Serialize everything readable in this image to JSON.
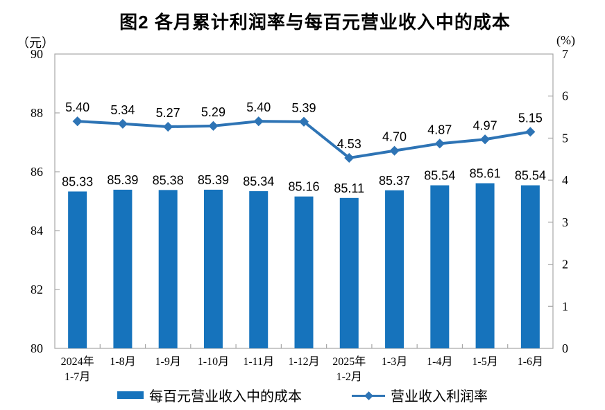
{
  "title": "图2 各月累计利润率与每百元营业收入中的成本",
  "left_axis": {
    "unit": "（元）",
    "min": 80,
    "max": 90,
    "ticks": [
      "90",
      "88",
      "86",
      "84",
      "82",
      "80"
    ]
  },
  "right_axis": {
    "unit": "(%)",
    "min": 0,
    "max": 7,
    "ticks": [
      "7",
      "6",
      "5",
      "4",
      "3",
      "2",
      "1",
      "0"
    ]
  },
  "chart_data": {
    "type": "bar",
    "subtype": "combo-bar-line-dual-axis",
    "title": "图2 各月累计利润率与每百元营业收入中的成本",
    "categories": [
      [
        "2024年",
        "1-7月"
      ],
      [
        "1-8月"
      ],
      [
        "1-9月"
      ],
      [
        "1-10月"
      ],
      [
        "1-11月"
      ],
      [
        "1-12月"
      ],
      [
        "2025年",
        "1-2月"
      ],
      [
        "1-3月"
      ],
      [
        "1-4月"
      ],
      [
        "1-5月"
      ],
      [
        "1-6月"
      ]
    ],
    "series": [
      {
        "name": "每百元营业收入中的成本",
        "type": "bar",
        "axis": "left",
        "color": "#1673BC",
        "values": [
          85.33,
          85.39,
          85.38,
          85.39,
          85.34,
          85.16,
          85.11,
          85.37,
          85.54,
          85.61,
          85.54
        ],
        "labels": [
          "85.33",
          "85.39",
          "85.38",
          "85.39",
          "85.34",
          "85.16",
          "85.11",
          "85.37",
          "85.54",
          "85.61",
          "85.54"
        ]
      },
      {
        "name": "营业收入利润率",
        "type": "line",
        "axis": "right",
        "marker": "diamond",
        "color": "#2E74B5",
        "values": [
          5.4,
          5.34,
          5.27,
          5.29,
          5.4,
          5.39,
          4.53,
          4.7,
          4.87,
          4.97,
          5.15
        ],
        "labels": [
          "5.40",
          "5.34",
          "5.27",
          "5.29",
          "5.40",
          "5.39",
          "4.53",
          "4.70",
          "4.87",
          "4.97",
          "5.15"
        ]
      }
    ],
    "left_ylim": [
      80,
      90
    ],
    "right_ylim": [
      0,
      7
    ],
    "grid": false,
    "legend_position": "bottom",
    "axis_color": "#A6A6A6",
    "background": "#FFFFFF"
  }
}
